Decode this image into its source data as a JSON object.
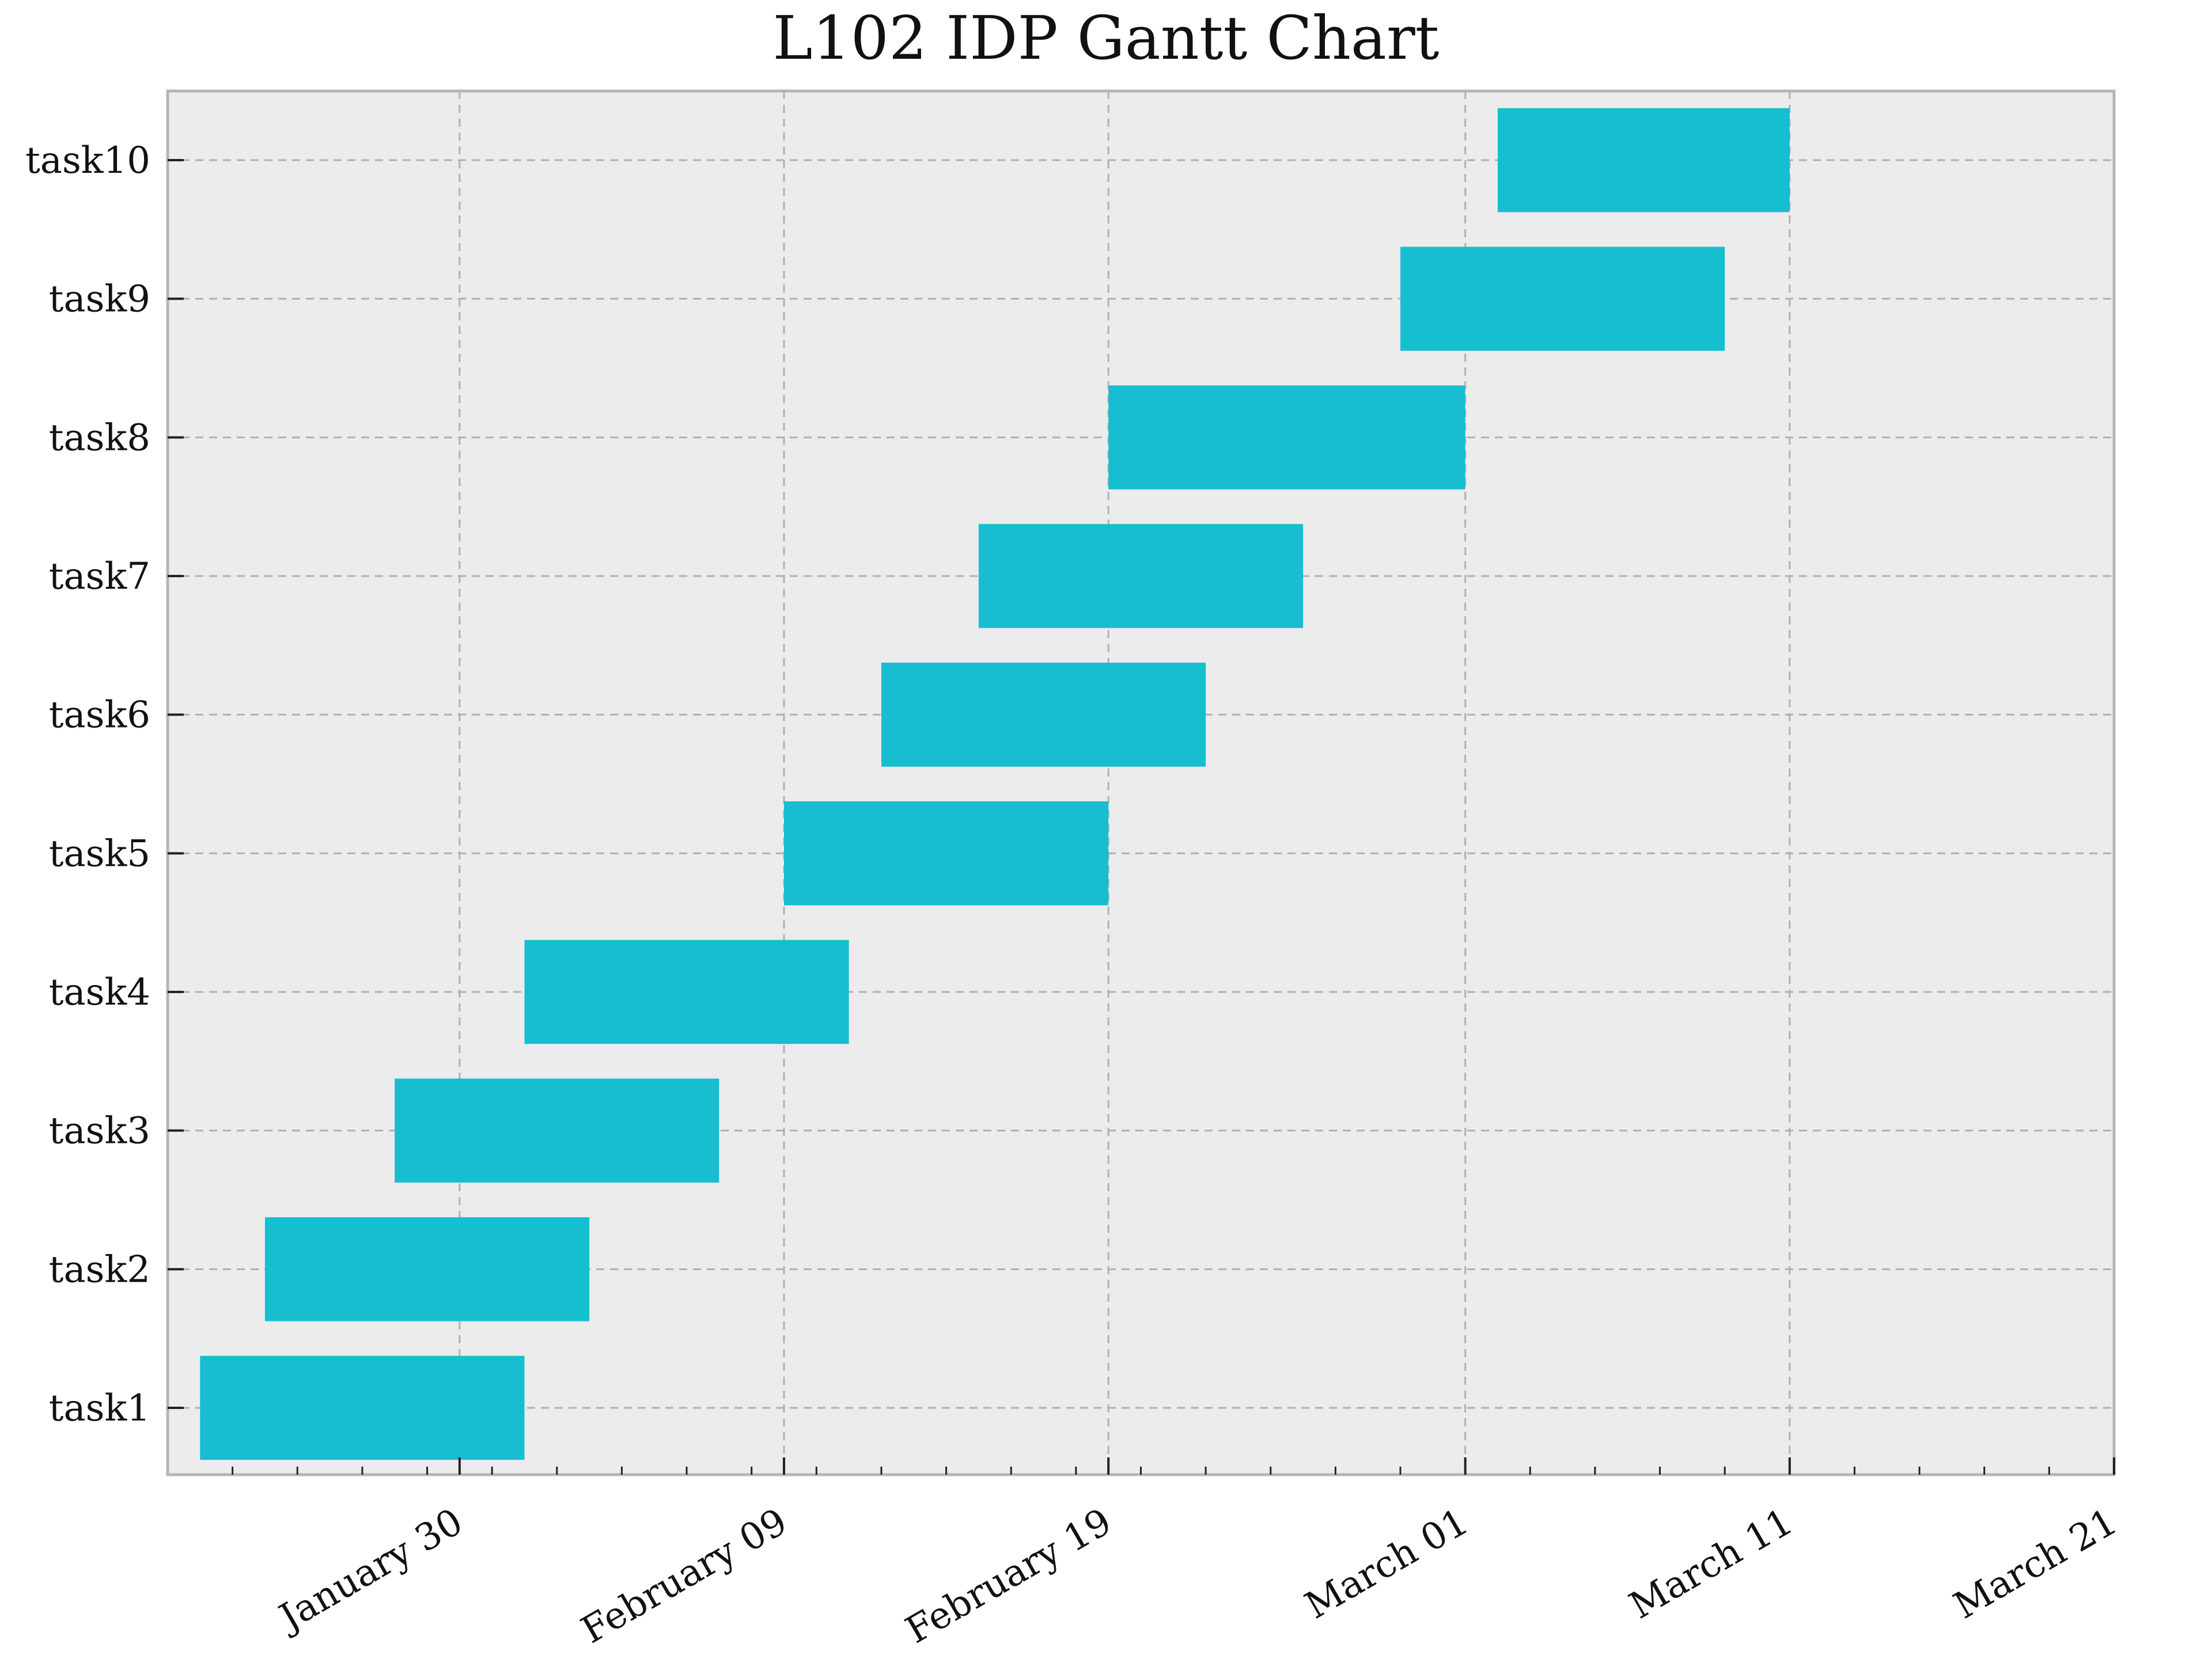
{
  "chart_data": {
    "type": "bar",
    "orientation": "horizontal",
    "title": "L102 IDP Gantt Chart",
    "xlabel": "",
    "ylabel": "",
    "categories": [
      "task1",
      "task2",
      "task3",
      "task4",
      "task5",
      "task6",
      "task7",
      "task8",
      "task9",
      "task10"
    ],
    "series": [
      {
        "start": [
          "2024-01-22",
          "2024-01-24",
          "2024-01-28",
          "2024-02-01",
          "2024-02-09",
          "2024-02-12",
          "2024-02-15",
          "2024-02-19",
          "2024-02-28",
          "2024-03-02"
        ],
        "end": [
          "2024-02-01",
          "2024-02-03",
          "2024-02-07",
          "2024-02-11",
          "2024-02-19",
          "2024-02-22",
          "2024-02-25",
          "2024-03-01",
          "2024-03-09",
          "2024-03-11"
        ]
      }
    ],
    "xlim": [
      "2024-01-21",
      "2024-03-21"
    ],
    "x_major_ticks": [
      "2024-01-30",
      "2024-02-09",
      "2024-02-19",
      "2024-03-01",
      "2024-03-11",
      "2024-03-21"
    ],
    "x_tick_labels": [
      "January 30",
      "February 09",
      "February 19",
      "March 01",
      "March 11",
      "March 21"
    ],
    "grid": true,
    "colors": {
      "bar": "#17becf",
      "plot_background": "#ececec",
      "frame": "#b5b5b5",
      "grid": "#b0b0b0"
    }
  }
}
